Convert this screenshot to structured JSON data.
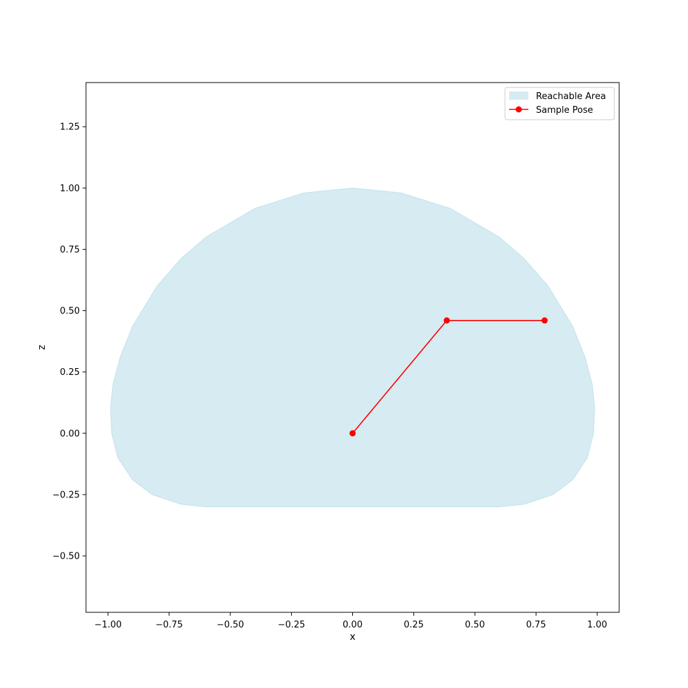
{
  "chart_data": {
    "type": "line",
    "title": "",
    "xlabel": "x",
    "ylabel": "z",
    "xlim": [
      -1.09,
      1.09
    ],
    "ylim": [
      -0.73,
      1.43
    ],
    "grid": false,
    "legend_position": "top-right",
    "x_ticks": [
      {
        "value": -1.0,
        "label": "−1.00"
      },
      {
        "value": -0.75,
        "label": "−0.75"
      },
      {
        "value": -0.5,
        "label": "−0.50"
      },
      {
        "value": -0.25,
        "label": "−0.25"
      },
      {
        "value": 0.0,
        "label": "0.00"
      },
      {
        "value": 0.25,
        "label": "0.25"
      },
      {
        "value": 0.5,
        "label": "0.50"
      },
      {
        "value": 0.75,
        "label": "0.75"
      },
      {
        "value": 1.0,
        "label": "1.00"
      }
    ],
    "y_ticks": [
      {
        "value": -0.5,
        "label": "−0.50"
      },
      {
        "value": -0.25,
        "label": "−0.25"
      },
      {
        "value": 0.0,
        "label": "0.00"
      },
      {
        "value": 0.25,
        "label": "0.25"
      },
      {
        "value": 0.5,
        "label": "0.50"
      },
      {
        "value": 0.75,
        "label": "0.75"
      },
      {
        "value": 1.0,
        "label": "1.00"
      },
      {
        "value": 1.25,
        "label": "1.25"
      }
    ],
    "reachable_area": {
      "name": "Reachable Area",
      "color": "#add8e6",
      "opacity": 0.5,
      "outline": [
        [
          0.0,
          1.0
        ],
        [
          0.2,
          0.98
        ],
        [
          0.4,
          0.917
        ],
        [
          0.6,
          0.8
        ],
        [
          0.7,
          0.714
        ],
        [
          0.8,
          0.6
        ],
        [
          0.9,
          0.436
        ],
        [
          0.95,
          0.312
        ],
        [
          0.98,
          0.2
        ],
        [
          0.99,
          0.1
        ],
        [
          0.985,
          0.0
        ],
        [
          0.96,
          -0.1
        ],
        [
          0.9,
          -0.19
        ],
        [
          0.82,
          -0.25
        ],
        [
          0.7,
          -0.29
        ],
        [
          0.6,
          -0.3
        ],
        [
          0.0,
          -0.3
        ],
        [
          -0.6,
          -0.3
        ],
        [
          -0.7,
          -0.29
        ],
        [
          -0.82,
          -0.25
        ],
        [
          -0.9,
          -0.19
        ],
        [
          -0.96,
          -0.1
        ],
        [
          -0.985,
          0.0
        ],
        [
          -0.99,
          0.1
        ],
        [
          -0.98,
          0.2
        ],
        [
          -0.95,
          0.312
        ],
        [
          -0.9,
          0.436
        ],
        [
          -0.8,
          0.6
        ],
        [
          -0.7,
          0.714
        ],
        [
          -0.6,
          0.8
        ],
        [
          -0.4,
          0.917
        ],
        [
          -0.2,
          0.98
        ],
        [
          0.0,
          1.0
        ]
      ]
    },
    "series": [
      {
        "name": "Sample Pose",
        "color": "#ff0000",
        "marker": "circle",
        "x": [
          0.0,
          0.385,
          0.785
        ],
        "y": [
          0.0,
          0.46,
          0.46
        ]
      }
    ]
  }
}
